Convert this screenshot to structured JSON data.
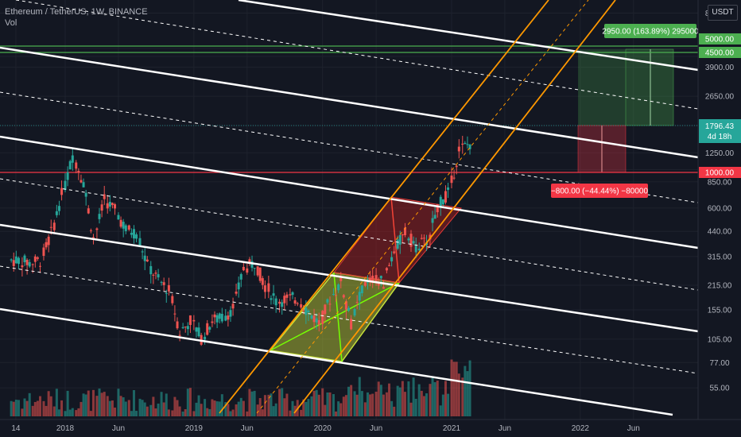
{
  "header": {
    "symbol_line": "Ethereum / TetherUS, 1W, BINANCE",
    "indicator": "Vol"
  },
  "currency_button": "USDT",
  "price_axis": {
    "ticks": [
      "8000.00",
      "5000.00",
      "4500.00",
      "3900.00",
      "2650.00",
      "1796.43",
      "1250.00",
      "1000.00",
      "850.00",
      "600.00",
      "440.00",
      "315.00",
      "215.00",
      "155.00",
      "105.00",
      "77.00",
      "55.00"
    ],
    "current_price": "1796.43",
    "countdown": "4d 18h"
  },
  "time_axis": {
    "labels": [
      "14",
      "2018",
      "Jun",
      "2019",
      "Jun",
      "2020",
      "Jun",
      "2021",
      "Jun",
      "2022",
      "Jun"
    ]
  },
  "annotations": {
    "target_label": "2950.00 (163.89%) 295000",
    "stop_label": "−800.00 (−44.44%) −80000",
    "target_price": "5000.00",
    "target_price_2": "4500.00",
    "stop_price": "1000.00"
  },
  "colors": {
    "background": "#131722",
    "up": "#26a69a",
    "down": "#ef5350",
    "channel": "#ff9800",
    "target_zone": "#4caf50",
    "stop_zone": "#f23645",
    "trend_lines": "#ffffff"
  },
  "chart_data": {
    "type": "candlestick",
    "scale": "log",
    "ylim": [
      50,
      8000
    ],
    "x_range": [
      "2017-08-14",
      "2022-09-30"
    ],
    "series": [
      {
        "values": [
          {
            "date": "2017-08",
            "close": 300
          },
          {
            "date": "2017-09",
            "close": 290
          },
          {
            "date": "2017-10",
            "close": 300
          },
          {
            "date": "2017-11",
            "close": 430
          },
          {
            "date": "2017-12",
            "close": 720
          },
          {
            "date": "2018-01",
            "close": 1200
          },
          {
            "date": "2018-02",
            "close": 850
          },
          {
            "date": "2018-03",
            "close": 400
          },
          {
            "date": "2018-04",
            "close": 670
          },
          {
            "date": "2018-05",
            "close": 580
          },
          {
            "date": "2018-06",
            "close": 450
          },
          {
            "date": "2018-07",
            "close": 430
          },
          {
            "date": "2018-08",
            "close": 280
          },
          {
            "date": "2018-09",
            "close": 230
          },
          {
            "date": "2018-10",
            "close": 200
          },
          {
            "date": "2018-11",
            "close": 115
          },
          {
            "date": "2018-12",
            "close": 135
          },
          {
            "date": "2019-01",
            "close": 107
          },
          {
            "date": "2019-02",
            "close": 135
          },
          {
            "date": "2019-03",
            "close": 140
          },
          {
            "date": "2019-04",
            "close": 160
          },
          {
            "date": "2019-05",
            "close": 270
          },
          {
            "date": "2019-06",
            "close": 290
          },
          {
            "date": "2019-07",
            "close": 215
          },
          {
            "date": "2019-08",
            "close": 175
          },
          {
            "date": "2019-09",
            "close": 180
          },
          {
            "date": "2019-10",
            "close": 180
          },
          {
            "date": "2019-11",
            "close": 150
          },
          {
            "date": "2019-12",
            "close": 130
          },
          {
            "date": "2020-01",
            "close": 180
          },
          {
            "date": "2020-02",
            "close": 225
          },
          {
            "date": "2020-03",
            "close": 130
          },
          {
            "date": "2020-04",
            "close": 205
          },
          {
            "date": "2020-05",
            "close": 230
          },
          {
            "date": "2020-06",
            "close": 225
          },
          {
            "date": "2020-07",
            "close": 345
          },
          {
            "date": "2020-08",
            "close": 430
          },
          {
            "date": "2020-09",
            "close": 360
          },
          {
            "date": "2020-10",
            "close": 385
          },
          {
            "date": "2020-11",
            "close": 615
          },
          {
            "date": "2020-12",
            "close": 735
          },
          {
            "date": "2021-01",
            "close": 1310
          },
          {
            "date": "2021-02",
            "close": 1420
          },
          {
            "date": "2021-03",
            "close": 1796
          }
        ]
      }
    ]
  }
}
